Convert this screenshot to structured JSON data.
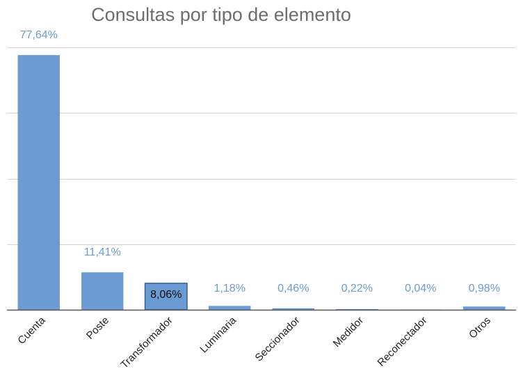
{
  "chart_data": {
    "type": "bar",
    "title": "Consultas por tipo de elemento",
    "xlabel": "",
    "ylabel": "",
    "categories": [
      "Cuenta",
      "Poste",
      "Transformador",
      "Luminaria",
      "Seccionador",
      "Medidor",
      "Reconectador",
      "Otros"
    ],
    "values": [
      77.64,
      11.41,
      8.06,
      1.18,
      0.46,
      0.22,
      0.04,
      0.98
    ],
    "value_labels": [
      "77,64%",
      "11,41%",
      "8,06%",
      "1,18%",
      "0,46%",
      "0,22%",
      "0,04%",
      "0,98%"
    ],
    "unit": "%",
    "ylim": [
      0,
      80
    ],
    "y_gridlines": [
      0,
      20,
      40,
      60,
      80
    ],
    "grid": true,
    "y_tick_labels_shown": false,
    "x_tick_rotation_deg": -45,
    "legend": "none",
    "colors": {
      "bar": "#6b9bd2",
      "bar_outline_highlight": "#2f5e95",
      "data_label": "#6b9bd2",
      "data_label_inside": "#111111",
      "title": "#6d6d6d",
      "grid": "#d4d4d4",
      "axis": "#555555"
    },
    "label_inside_bar_index": 2
  }
}
